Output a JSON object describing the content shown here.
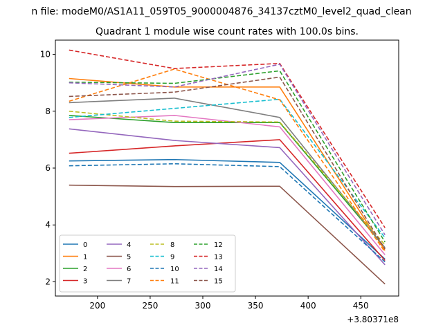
{
  "chart_data": {
    "type": "line",
    "suptitle": "n file: modeM0/AS1A11_059T05_9000004876_34137cztM0_level2_quad_clean",
    "title": "Quadrant 1 module wise count rates with 100.0s bins.",
    "xlabel": "",
    "ylabel": "",
    "x_offset_label": "+3.80371e8",
    "x": [
      173,
      273,
      373,
      473
    ],
    "xlim": [
      160,
      486
    ],
    "ylim": [
      1.5,
      10.5
    ],
    "xticks": [
      200,
      250,
      300,
      350,
      400,
      450
    ],
    "yticks": [
      2,
      4,
      6,
      8,
      10
    ],
    "legend_position": "lower-left",
    "series": [
      {
        "name": "0",
        "color": "#1f77b4",
        "dash": false,
        "values": [
          6.25,
          6.3,
          6.2,
          2.8
        ]
      },
      {
        "name": "1",
        "color": "#ff7f0e",
        "dash": false,
        "values": [
          9.15,
          8.85,
          8.85,
          3.1
        ]
      },
      {
        "name": "2",
        "color": "#2ca02c",
        "dash": false,
        "values": [
          7.85,
          7.6,
          7.6,
          3.2
        ]
      },
      {
        "name": "3",
        "color": "#d62728",
        "dash": false,
        "values": [
          6.52,
          6.78,
          7.0,
          2.75
        ]
      },
      {
        "name": "4",
        "color": "#9467bd",
        "dash": false,
        "values": [
          7.38,
          6.97,
          6.72,
          2.6
        ]
      },
      {
        "name": "5",
        "color": "#8c564b",
        "dash": false,
        "values": [
          5.4,
          5.35,
          5.36,
          1.92
        ]
      },
      {
        "name": "6",
        "color": "#e377c2",
        "dash": false,
        "values": [
          7.7,
          7.85,
          7.45,
          2.95
        ]
      },
      {
        "name": "7",
        "color": "#7f7f7f",
        "dash": false,
        "values": [
          8.3,
          8.46,
          7.78,
          3.2
        ]
      },
      {
        "name": "8",
        "color": "#bcbd22",
        "dash": true,
        "values": [
          8.0,
          7.65,
          7.62,
          3.3
        ]
      },
      {
        "name": "9",
        "color": "#17becf",
        "dash": true,
        "values": [
          7.78,
          8.1,
          8.42,
          3.55
        ]
      },
      {
        "name": "10",
        "color": "#1f77b4",
        "dash": true,
        "values": [
          6.08,
          6.15,
          6.05,
          2.7
        ]
      },
      {
        "name": "11",
        "color": "#ff7f0e",
        "dash": true,
        "values": [
          8.35,
          9.48,
          8.4,
          3.05
        ]
      },
      {
        "name": "12",
        "color": "#2ca02c",
        "dash": true,
        "values": [
          9.02,
          8.98,
          9.42,
          3.4
        ]
      },
      {
        "name": "13",
        "color": "#d62728",
        "dash": true,
        "values": [
          10.15,
          9.5,
          9.68,
          3.9
        ]
      },
      {
        "name": "14",
        "color": "#9467bd",
        "dash": true,
        "values": [
          9.0,
          8.85,
          9.65,
          3.65
        ]
      },
      {
        "name": "15",
        "color": "#8c564b",
        "dash": true,
        "values": [
          8.52,
          8.67,
          9.2,
          3.15
        ]
      }
    ]
  }
}
